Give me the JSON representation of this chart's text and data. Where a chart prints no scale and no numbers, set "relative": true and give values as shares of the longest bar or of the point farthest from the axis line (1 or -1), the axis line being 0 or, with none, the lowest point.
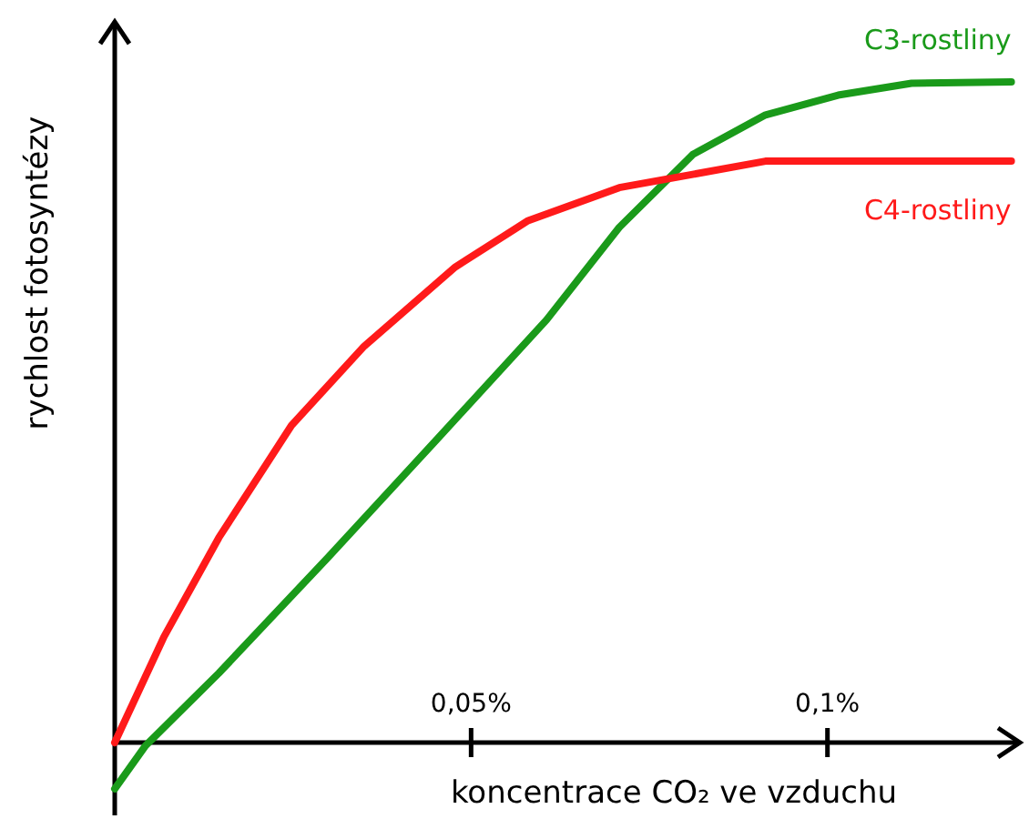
{
  "chart_data": {
    "type": "line",
    "relative": true,
    "xlabel": "koncentrace CO₂ ve vzduchu",
    "ylabel": "rychlost fotosyntézy",
    "xlim": [
      0,
      0.127
    ],
    "xticks": [
      {
        "value": 0.05,
        "label": "0,05%"
      },
      {
        "value": 0.1,
        "label": "0,1%"
      }
    ],
    "grid": false,
    "marker": "none",
    "line_style": "solid",
    "series": [
      {
        "name": "C3-rostliny",
        "color": "#1a9a1a",
        "x": [
          0,
          0.0043,
          0.0146,
          0.0299,
          0.0453,
          0.0606,
          0.0708,
          0.0811,
          0.0913,
          0.1015,
          0.1118,
          0.1258
        ],
        "values": [
          -0.07,
          -0.005,
          0.105,
          0.28,
          0.46,
          0.64,
          0.78,
          0.89,
          0.95,
          0.98,
          0.998,
          1
        ]
      },
      {
        "name": "C4-rostliny",
        "color": "#ff1a1a",
        "x": [
          0,
          0.0069,
          0.0146,
          0.0248,
          0.035,
          0.0478,
          0.058,
          0.0708,
          0.0811,
          0.0913,
          0.104,
          0.1258
        ],
        "values": [
          0,
          0.16,
          0.31,
          0.48,
          0.6,
          0.72,
          0.79,
          0.84,
          0.86,
          0.88,
          0.88,
          0.88
        ]
      }
    ]
  }
}
